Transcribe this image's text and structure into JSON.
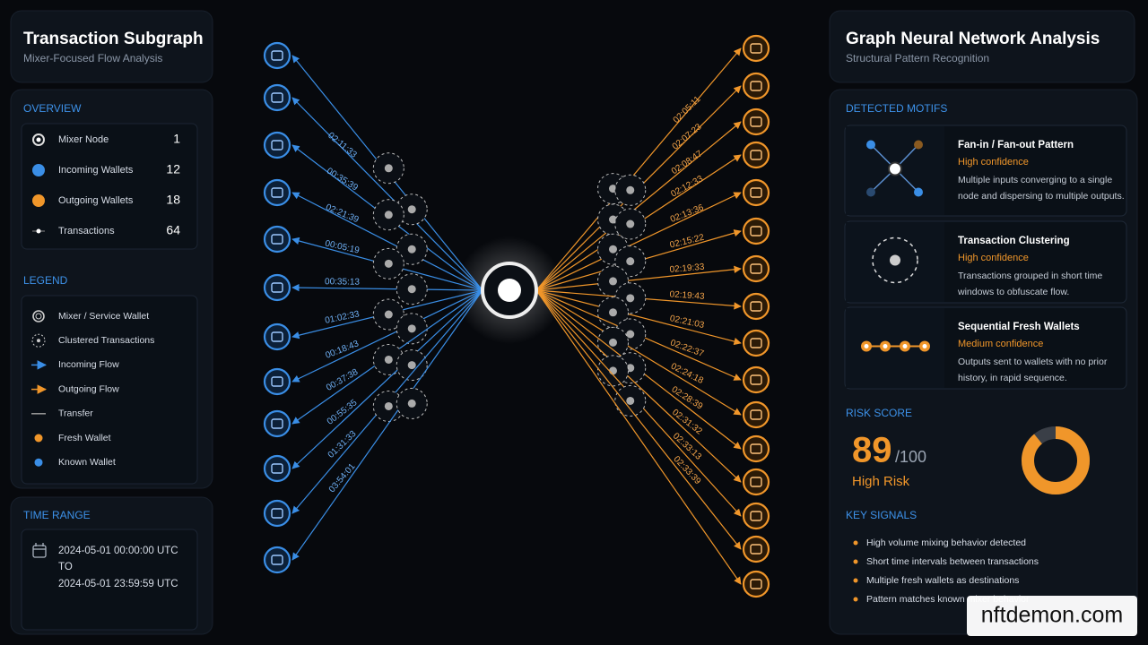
{
  "left_panel": {
    "title": "Transaction Subgraph",
    "subtitle": "Mixer-Focused Flow Analysis",
    "overview": {
      "heading": "OVERVIEW",
      "items": [
        {
          "label": "Mixer Node",
          "value": 1
        },
        {
          "label": "Incoming Wallets",
          "value": 12
        },
        {
          "label": "Outgoing Wallets",
          "value": 18
        },
        {
          "label": "Transactions",
          "value": 64
        }
      ]
    },
    "legend": {
      "heading": "LEGEND",
      "items": [
        "Mixer / Service Wallet",
        "Clustered Transactions",
        "Incoming Flow",
        "Outgoing Flow",
        "Transfer",
        "Fresh Wallet",
        "Known Wallet"
      ]
    },
    "time_range": {
      "heading": "TIME RANGE",
      "start": "2024-05-01 00:00:00 UTC",
      "separator": "TO",
      "end": "2024-05-01 23:59:59 UTC"
    }
  },
  "graph": {
    "incoming_times": [
      "02:11:33",
      "00:35:39",
      "02:21:39",
      "00:05:19",
      "00:35:13",
      "01:02:33",
      "00:18:43",
      "00:37:38",
      "00:55:35",
      "01:31:33",
      "03:54:01"
    ],
    "outgoing_times": [
      "02:05:11",
      "02:07:23",
      "02:08:47",
      "02:12:33",
      "02:13:36",
      "02:15:22",
      "02:19:33",
      "02:19:43",
      "02:21:03",
      "02:22:37",
      "02:24:18",
      "02:28:39",
      "02:31:32",
      "02:33:13",
      "02:33:39"
    ]
  },
  "right_panel": {
    "title": "Graph Neural Network Analysis",
    "subtitle": "Structural Pattern Recognition",
    "motifs": {
      "heading": "DETECTED MOTIFS",
      "items": [
        {
          "title": "Fan-in / Fan-out Pattern",
          "confidence": "High confidence",
          "description": [
            "Multiple inputs converging to a single",
            "node and dispersing to multiple outputs."
          ]
        },
        {
          "title": "Transaction Clustering",
          "confidence": "High confidence",
          "description": [
            "Transactions grouped in short time",
            "windows to obfuscate flow."
          ]
        },
        {
          "title": "Sequential Fresh Wallets",
          "confidence": "Medium confidence",
          "description": [
            "Outputs sent to wallets with no prior",
            "history, in rapid sequence."
          ]
        }
      ]
    },
    "risk": {
      "heading": "RISK SCORE",
      "score": 89,
      "max_label": "/100",
      "level": "High Risk"
    },
    "signals": {
      "heading": "KEY SIGNALS",
      "items": [
        "High volume mixing behavior detected",
        "Short time intervals between transactions",
        "Multiple fresh wallets as destinations",
        "Pattern matches known mixer behavior"
      ]
    }
  },
  "watermark": "nftdemon.com"
}
